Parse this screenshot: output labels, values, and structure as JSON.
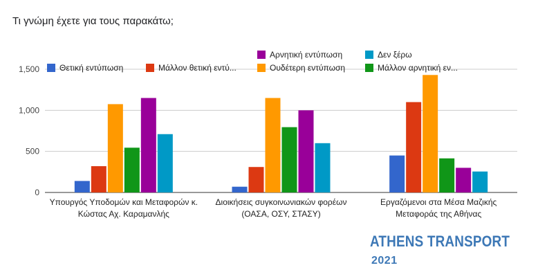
{
  "question": "Τι γνώμη έχετε για τους παρακάτω;",
  "chart_data": {
    "type": "bar",
    "categories": [
      [
        "Υπουργός Υποδομών και Μεταφορών κ.",
        "Κώστας Αχ. Καραμανλής"
      ],
      [
        "Διοικήσεις συγκοινωνιακών φορέων",
        "(ΟΑΣΑ, ΟΣΥ, ΣΤΑΣΥ)"
      ],
      [
        "Εργαζόμενοι στα Μέσα Μαζικής",
        "Μεταφοράς της Αθήνας"
      ]
    ],
    "series": [
      {
        "name": "Θετική εντύπωση",
        "color": "#3366cc",
        "values": [
          140,
          70,
          450
        ]
      },
      {
        "name": "Μάλλον θετική εντύ...",
        "color": "#dc3912",
        "values": [
          320,
          310,
          1100
        ]
      },
      {
        "name": "Ουδέτερη εντύπωση",
        "color": "#ff9900",
        "values": [
          1075,
          1150,
          1430
        ]
      },
      {
        "name": "Μάλλον αρνητική εν...",
        "color": "#109618",
        "values": [
          545,
          795,
          415
        ]
      },
      {
        "name": "Αρνητική εντύπωση",
        "color": "#990099",
        "values": [
          1150,
          1000,
          300
        ]
      },
      {
        "name": "Δεν ξέρω",
        "color": "#0099c6",
        "values": [
          710,
          600,
          255
        ]
      }
    ],
    "y_ticks": [
      "0",
      "500",
      "1,000",
      "1,500"
    ],
    "y_tick_values": [
      0,
      500,
      1000,
      1500
    ],
    "ylim": [
      0,
      1500
    ],
    "grid": true,
    "legend": "top"
  },
  "watermark": {
    "title": "ATHENS TRANSPORT",
    "year": "2021",
    "color": "#3d78b6"
  }
}
